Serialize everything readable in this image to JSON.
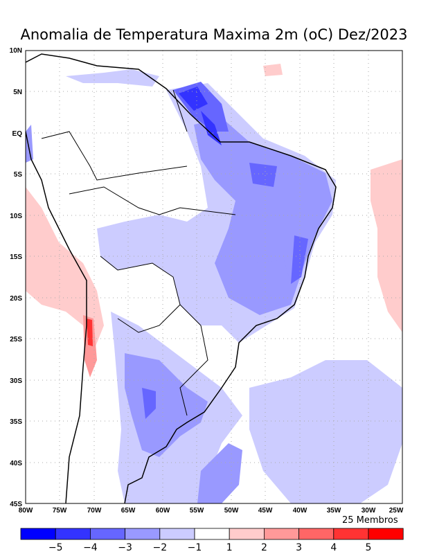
{
  "title": "Anomalia de Temperatura Maxima 2m (oC) Dez/2023",
  "footer_note": "25 Membros",
  "lat_labels": [
    "10N",
    "5N",
    "EQ",
    "5S",
    "10S",
    "15S",
    "20S",
    "25S",
    "30S",
    "35S",
    "40S",
    "45S"
  ],
  "lon_labels": [
    "80W",
    "75W",
    "70W",
    "65W",
    "60W",
    "55W",
    "50W",
    "45W",
    "40W",
    "35W",
    "30W",
    "25W"
  ],
  "colorbar": {
    "colors": [
      "#0000ff",
      "#3333ff",
      "#6666ff",
      "#9999ff",
      "#ccccff",
      "#ffffff",
      "#ffcccc",
      "#ff9999",
      "#ff6666",
      "#ff3333",
      "#ff0000"
    ],
    "labels": [
      "-5",
      "-4",
      "-3",
      "-2",
      "-1",
      "1",
      "2",
      "3",
      "4",
      "5"
    ]
  }
}
